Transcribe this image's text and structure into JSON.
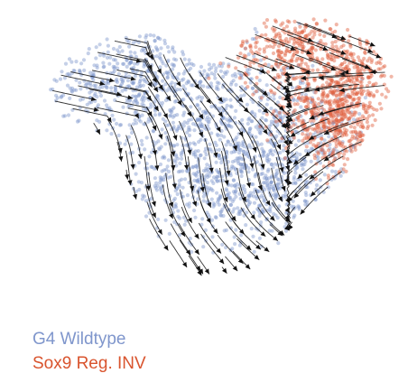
{
  "chart_data": {
    "type": "scatter",
    "title": "",
    "xlabel": "",
    "ylabel": "",
    "xlim": [
      0,
      100
    ],
    "ylim": [
      0,
      100
    ],
    "grid": false,
    "axes_visible": false,
    "overlay": "velocity streamlines with arrowheads",
    "legend_placement": "bottom-left",
    "series": [
      {
        "name": "G4 Wildtype",
        "color": "#7f96cc",
        "note": "Left and central region of the embedding",
        "clusters": [
          {
            "center": [
              26,
              76
            ],
            "spread": [
              14,
              10
            ],
            "count": 420
          },
          {
            "center": [
              48,
              58
            ],
            "spread": [
              14,
              14
            ],
            "count": 520
          },
          {
            "center": [
              56,
              36
            ],
            "spread": [
              16,
              10
            ],
            "count": 520
          },
          {
            "center": [
              72,
              55
            ],
            "spread": [
              10,
              14
            ],
            "count": 260
          }
        ]
      },
      {
        "name": "Sox9 Reg. INV",
        "color": "#e0603f",
        "note": "Upper-right arc of the embedding",
        "clusters": [
          {
            "center": [
              72,
              86
            ],
            "spread": [
              9,
              6
            ],
            "count": 320
          },
          {
            "center": [
              88,
              74
            ],
            "spread": [
              6,
              10
            ],
            "count": 300
          },
          {
            "center": [
              84,
              56
            ],
            "spread": [
              6,
              9
            ],
            "count": 260
          },
          {
            "center": [
              76,
              64
            ],
            "spread": [
              6,
              6
            ],
            "count": 180
          }
        ]
      }
    ]
  },
  "legend": {
    "items": [
      {
        "label": "G4 Wildtype",
        "color": "#7f96cc"
      },
      {
        "label": "Sox9 Reg. INV",
        "color": "#d9542e"
      }
    ]
  }
}
